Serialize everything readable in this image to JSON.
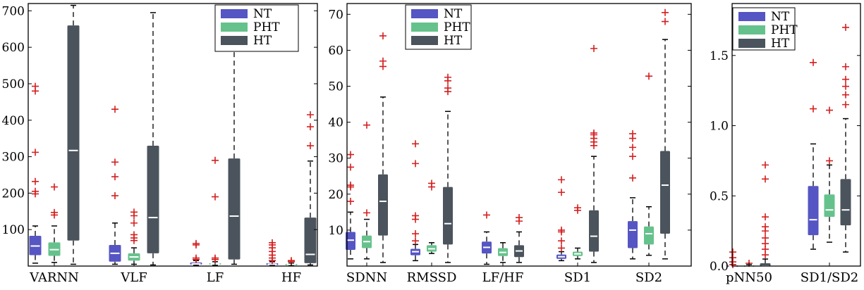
{
  "legend_placement": "top-right",
  "colors": {
    "NT": "#5555c4",
    "PHT": "#66c28c",
    "HT": "#4b545c",
    "outlier": "#d42020",
    "median": "#ffffff"
  },
  "chart_data": [
    {
      "type": "box",
      "ylim": [
        0,
        720
      ],
      "yticks": [
        100,
        200,
        300,
        400,
        500,
        600,
        700
      ],
      "categories": [
        "VARNN",
        "VLF",
        "LF",
        "HF"
      ],
      "legend": [
        "NT",
        "PHT",
        "HT"
      ],
      "series": [
        {
          "name": "NT",
          "boxes": [
            {
              "whislo": 8,
              "q1": 30,
              "med": 55,
              "q3": 83,
              "whishi": 110,
              "fliers": [
                198,
                205,
                232,
                312,
                480,
                493
              ]
            },
            {
              "whislo": 5,
              "q1": 12,
              "med": 35,
              "q3": 58,
              "whishi": 118,
              "fliers": [
                193,
                245,
                285,
                430
              ]
            },
            {
              "whislo": 2,
              "q1": 4,
              "med": 6,
              "q3": 10,
              "whishi": 15,
              "fliers": [
                18,
                22,
                58,
                62
              ]
            },
            {
              "whislo": 2,
              "q1": 3,
              "med": 5,
              "q3": 8,
              "whishi": 12,
              "fliers": [
                15,
                22,
                30,
                40,
                50,
                58,
                64
              ]
            }
          ]
        },
        {
          "name": "PHT",
          "boxes": [
            {
              "whislo": 10,
              "q1": 28,
              "med": 45,
              "q3": 65,
              "whishi": 110,
              "fliers": [
                140,
                147,
                217
              ]
            },
            {
              "whislo": 5,
              "q1": 15,
              "med": 25,
              "q3": 35,
              "whishi": 50,
              "fliers": [
                70,
                77,
                86,
                118,
                138,
                148
              ]
            },
            {
              "whislo": 2,
              "q1": 4,
              "med": 6,
              "q3": 8,
              "whishi": 12,
              "fliers": [
                18,
                22,
                190,
                290
              ]
            },
            {
              "whislo": 2,
              "q1": 3,
              "med": 5,
              "q3": 6,
              "whishi": 8,
              "fliers": [
                12,
                15
              ]
            }
          ]
        },
        {
          "name": "HT",
          "boxes": [
            {
              "whislo": 5,
              "q1": 70,
              "med": 317,
              "q3": 660,
              "whishi": 715,
              "fliers": []
            },
            {
              "whislo": 3,
              "q1": 35,
              "med": 133,
              "q3": 330,
              "whishi": 695,
              "fliers": []
            },
            {
              "whislo": 5,
              "q1": 18,
              "med": 137,
              "q3": 295,
              "whishi": 712,
              "fliers": []
            },
            {
              "whislo": 3,
              "q1": 8,
              "med": 32,
              "q3": 133,
              "whishi": 288,
              "fliers": [
                330,
                382,
                415
              ]
            }
          ]
        }
      ]
    },
    {
      "type": "box",
      "ylim": [
        0,
        73
      ],
      "yticks": [
        10,
        20,
        30,
        40,
        50,
        60,
        70
      ],
      "categories": [
        "SDNN",
        "RMSSD",
        "LF/HF",
        "SD1",
        "SD2"
      ],
      "legend": [
        "NT",
        "PHT",
        "HT"
      ],
      "series": [
        {
          "name": "NT",
          "boxes": [
            {
              "whislo": 2,
              "q1": 4.5,
              "med": 7.2,
              "q3": 9.5,
              "whishi": 15,
              "fliers": [
                18,
                22,
                22.5,
                27.5,
                31
              ]
            },
            {
              "whislo": 1.5,
              "q1": 3,
              "med": 4,
              "q3": 4.8,
              "whishi": 6,
              "fliers": [
                7,
                9,
                13,
                14,
                28.5,
                34
              ]
            },
            {
              "whislo": 0.5,
              "q1": 3.5,
              "med": 5.2,
              "q3": 6.8,
              "whishi": 9.5,
              "fliers": [
                14.2
              ]
            },
            {
              "whislo": 1.5,
              "q1": 2,
              "med": 2.6,
              "q3": 3.2,
              "whishi": 4,
              "fliers": [
                5,
                7,
                9.5,
                10,
                20.5,
                24
              ]
            },
            {
              "whislo": 2,
              "q1": 5,
              "med": 10,
              "q3": 12.5,
              "whishi": 19,
              "fliers": [
                24.5,
                30.5,
                33,
                35.5,
                36.8
              ]
            }
          ]
        },
        {
          "name": "PHT",
          "boxes": [
            {
              "whislo": 2,
              "q1": 5,
              "med": 6.8,
              "q3": 8.5,
              "whishi": 13,
              "fliers": [
                14.8,
                39.2
              ]
            },
            {
              "whislo": 3.5,
              "q1": 4,
              "med": 4.8,
              "q3": 5.8,
              "whishi": 6.5,
              "fliers": [
                22,
                23
              ]
            },
            {
              "whislo": 1,
              "q1": 2.8,
              "med": 3.8,
              "q3": 5,
              "whishi": 6.5,
              "fliers": []
            },
            {
              "whislo": 2,
              "q1": 2.8,
              "med": 3.4,
              "q3": 4,
              "whishi": 5,
              "fliers": [
                15.5,
                16.2
              ]
            },
            {
              "whislo": 3,
              "q1": 6,
              "med": 9,
              "q3": 11,
              "whishi": 16.5,
              "fliers": [
                52.8
              ]
            }
          ]
        },
        {
          "name": "HT",
          "boxes": [
            {
              "whislo": 1,
              "q1": 8.5,
              "med": 18,
              "q3": 25.5,
              "whishi": 47,
              "fliers": [
                55.5,
                57,
                64
              ]
            },
            {
              "whislo": 1,
              "q1": 6,
              "med": 11.8,
              "q3": 22,
              "whishi": 43,
              "fliers": [
                48.5,
                49.5,
                51.5,
                52.5
              ]
            },
            {
              "whislo": 1,
              "q1": 2.5,
              "med": 4.2,
              "q3": 5.8,
              "whishi": 9.5,
              "fliers": [
                12.5,
                13.5
              ]
            },
            {
              "whislo": 1,
              "q1": 4,
              "med": 8.3,
              "q3": 15.5,
              "whishi": 30.5,
              "fliers": [
                33.5,
                34.5,
                35.5,
                36.5,
                37,
                60.5
              ]
            },
            {
              "whislo": 2,
              "q1": 9,
              "med": 22.5,
              "q3": 32,
              "whishi": 63,
              "fliers": [
                68,
                70.5
              ]
            }
          ]
        }
      ]
    },
    {
      "type": "box",
      "ylim": [
        0,
        1.87
      ],
      "yticks": [
        0.0,
        0.5,
        1.0,
        1.5
      ],
      "ytick_labels": [
        "0.0",
        "0.5",
        "1.0",
        "1.5"
      ],
      "categories": [
        "pNN50",
        "SD1/SD2"
      ],
      "legend": [
        "NT",
        "PHT",
        "HT"
      ],
      "series": [
        {
          "name": "NT",
          "boxes": [
            {
              "whislo": 0,
              "q1": 0,
              "med": 0,
              "q3": 0.005,
              "whishi": 0.01,
              "fliers": [
                0.01,
                0.03,
                0.06,
                0.1
              ]
            },
            {
              "whislo": 0.12,
              "q1": 0.22,
              "med": 0.33,
              "q3": 0.57,
              "whishi": 0.87,
              "fliers": [
                1.12,
                1.45
              ]
            }
          ]
        },
        {
          "name": "PHT",
          "boxes": [
            {
              "whislo": 0,
              "q1": 0,
              "med": 0,
              "q3": 0.005,
              "whishi": 0.01,
              "fliers": [
                0.02
              ]
            },
            {
              "whislo": 0.17,
              "q1": 0.35,
              "med": 0.4,
              "q3": 0.51,
              "whishi": 0.72,
              "fliers": [
                0.75,
                1.11
              ]
            }
          ]
        },
        {
          "name": "HT",
          "boxes": [
            {
              "whislo": 0,
              "q1": 0,
              "med": 0,
              "q3": 0.02,
              "whishi": 0.05,
              "fliers": [
                0.08,
                0.12,
                0.16,
                0.2,
                0.25,
                0.28,
                0.35,
                0.62,
                0.72
              ]
            },
            {
              "whislo": 0.1,
              "q1": 0.29,
              "med": 0.4,
              "q3": 0.62,
              "whishi": 1.05,
              "fliers": [
                1.15,
                1.22,
                1.28,
                1.33,
                1.42,
                1.7
              ]
            }
          ]
        }
      ]
    }
  ]
}
